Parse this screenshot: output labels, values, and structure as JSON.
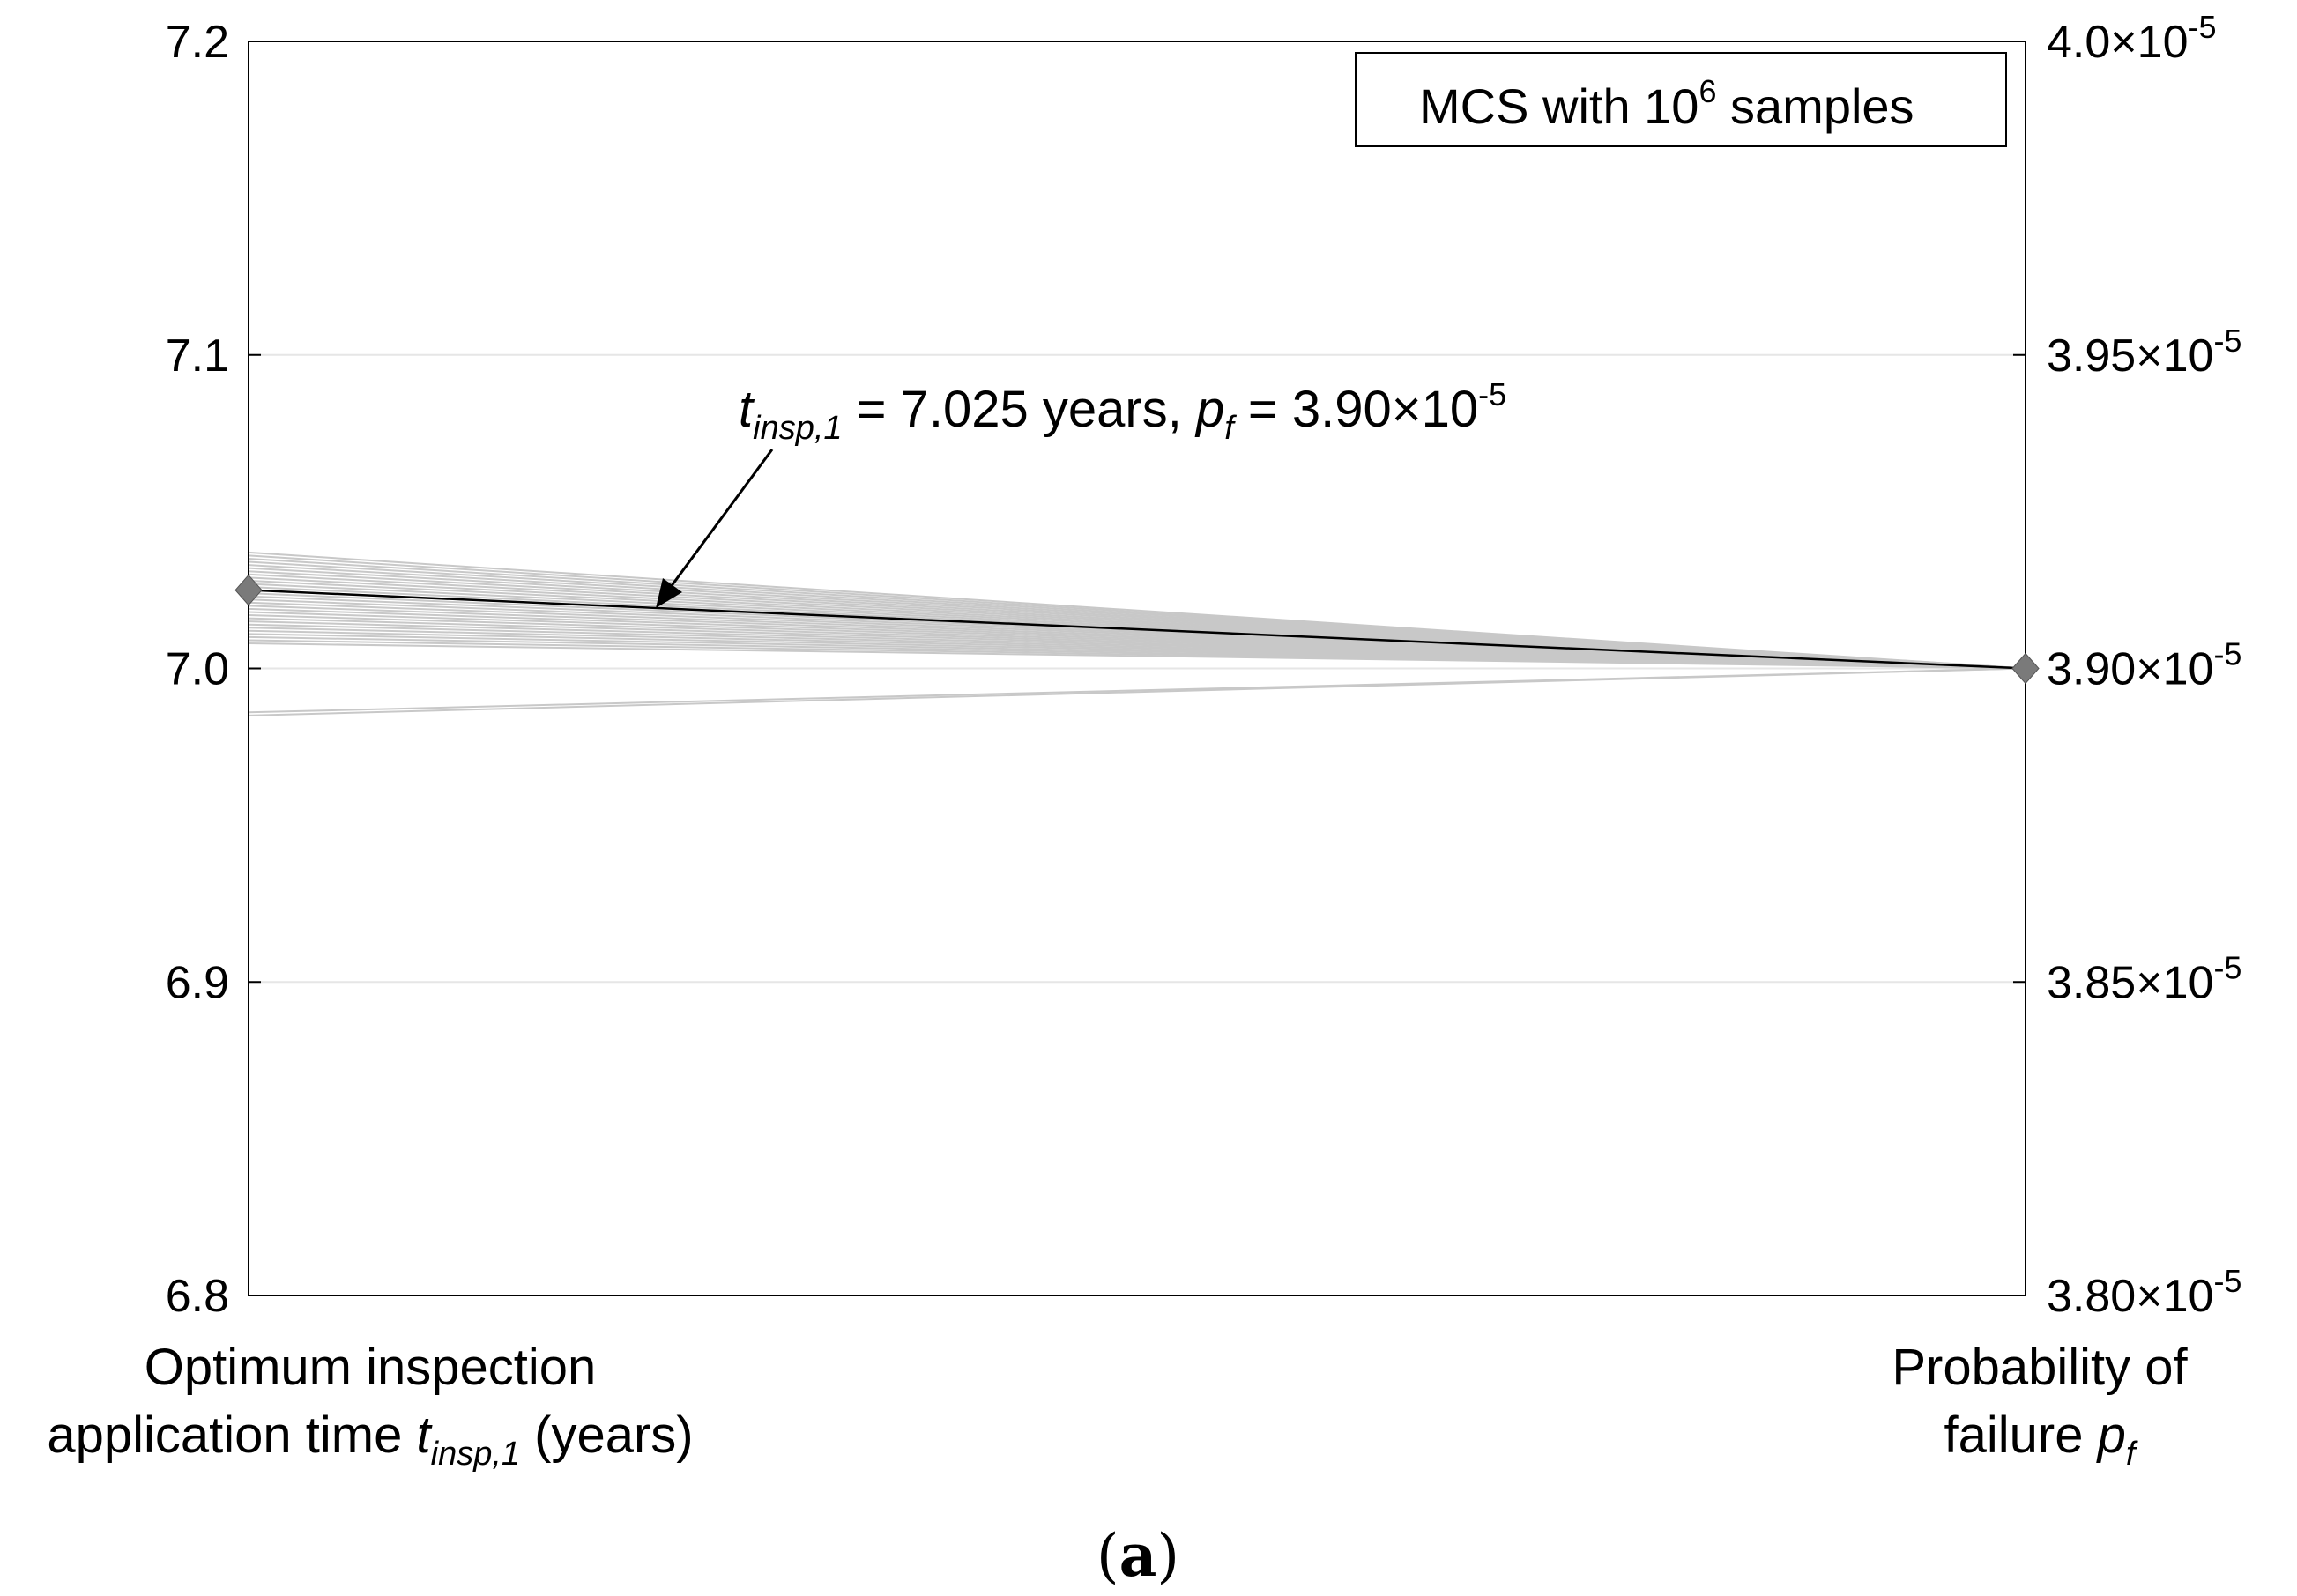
{
  "chart_data": {
    "type": "parallel_coordinates",
    "axes": [
      {
        "name": "left",
        "title_line1": "Optimum inspection",
        "title_line2_prefix": "application time ",
        "title_var": "t",
        "title_sub": "insp,1",
        "title_suffix": " (years)",
        "range": [
          6.8,
          7.2
        ],
        "ticks": [
          6.8,
          6.9,
          7.0,
          7.1,
          7.2
        ],
        "tick_labels": [
          "6.8",
          "6.9",
          "7.0",
          "7.1",
          "7.2"
        ]
      },
      {
        "name": "right",
        "title_line1": "Probability of",
        "title_line2_prefix": "failure ",
        "title_var": "p",
        "title_sub": "f",
        "range": [
          3.8e-05,
          4e-05
        ],
        "ticks": [
          3.8e-05,
          3.85e-05,
          3.9e-05,
          3.95e-05,
          4e-05
        ],
        "tick_mantissas": [
          "3.80",
          "3.85",
          "3.90",
          "3.95",
          "4.0"
        ],
        "tick_mult": "×10",
        "tick_exp": "-5"
      }
    ],
    "grid": true,
    "legend": {
      "position": "top-right",
      "text": "MCS with 10",
      "sup": "6",
      "text_after": " samples"
    },
    "sample_series": {
      "color": "#c8c8c8",
      "left_values": [
        7.037,
        7.036,
        7.035,
        7.034,
        7.033,
        7.032,
        7.031,
        7.03,
        7.029,
        7.028,
        7.027,
        7.026,
        7.025,
        7.024,
        7.023,
        7.022,
        7.021,
        7.02,
        7.019,
        7.018,
        7.017,
        7.016,
        7.015,
        7.014,
        7.013,
        7.012,
        7.011,
        7.01,
        7.009,
        7.008,
        6.986,
        6.985
      ],
      "right_value": 3.9e-05
    },
    "optimum_series": {
      "color": "#000000",
      "marker_color": "#7a7a7a",
      "left_value": 7.025,
      "right_value": 3.9e-05
    },
    "annotation": {
      "t_var": "t",
      "t_sub": "insp,1",
      "t_text": " = 7.025 years, ",
      "p_var": "p",
      "p_sub": "f",
      "p_text": " = 3.90×10",
      "p_exp": "-5"
    },
    "caption": {
      "open": "(",
      "letter": "a",
      "close": ")"
    }
  }
}
